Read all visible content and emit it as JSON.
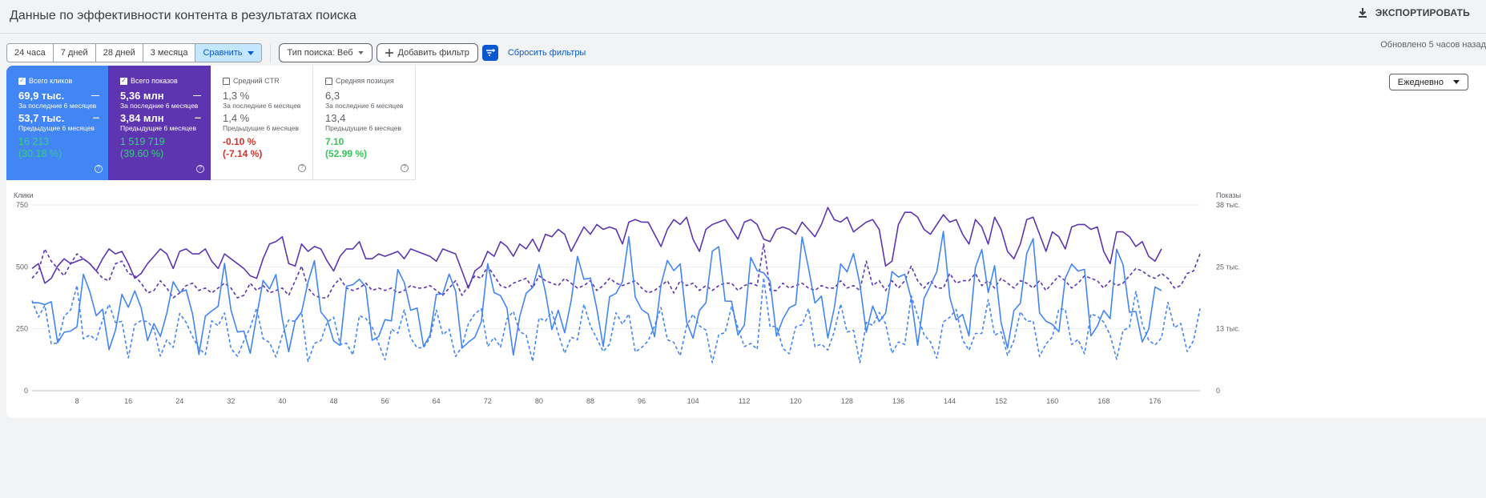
{
  "header": {
    "title": "Данные по эффективности контента в результатах поиска",
    "export_label": "ЭКСПОРТИРОВАТЬ"
  },
  "filters": {
    "ranges": [
      "24 часа",
      "7 дней",
      "28 дней",
      "3 месяца"
    ],
    "compare_label": "Сравнить",
    "search_type": "Тип поиска: Веб",
    "add_filter": "Добавить фильтр",
    "reset": "Сбросить фильтры",
    "updated": "Обновлено 5 часов назад"
  },
  "metrics": [
    {
      "name": "Всего кликов",
      "checked": true,
      "current": "69,9 тыс.",
      "current_label": "За последние 6 месяцев",
      "previous": "53,7 тыс.",
      "previous_label": "Предыдущие 6 месяцев",
      "delta": "16 213",
      "delta_pct": "(30.18 %)"
    },
    {
      "name": "Всего показов",
      "checked": true,
      "current": "5,36 млн",
      "current_label": "За последние 6 месяцев",
      "previous": "3,84 млн",
      "previous_label": "Предыдущие 6 месяцев",
      "delta": "1 519 719",
      "delta_pct": "(39.60 %)"
    },
    {
      "name": "Средний CTR",
      "checked": false,
      "current": "1,3 %",
      "current_label": "За последние 6 месяцев",
      "previous": "1,4 %",
      "previous_label": "Предыдущие 6 месяцев",
      "delta": "-0.10 %",
      "delta_pct": "(-7.14 %)"
    },
    {
      "name": "Средняя позиция",
      "checked": false,
      "current": "6,3",
      "current_label": "За последние 6 месяцев",
      "previous": "13,4",
      "previous_label": "Предыдущие 6 месяцев",
      "delta": "7.10",
      "delta_pct": "(52.99 %)"
    }
  ],
  "granularity": "Ежедневно",
  "colors": {
    "clicks": "#4285f4",
    "impressions": "#5e35b1",
    "positive": "#34c759",
    "negative": "#d93025"
  },
  "chart_data": {
    "type": "line",
    "ylabel_left": "Клики",
    "ylabel_right": "Показы",
    "yticks_left": [
      "0",
      "250",
      "500",
      "750"
    ],
    "yticks_right": [
      "0",
      "13 тыс.",
      "25 тыс.",
      "38 тыс."
    ],
    "ylim_left": [
      0,
      750
    ],
    "ylim_right": [
      0,
      38000
    ],
    "xticks": [
      8,
      16,
      24,
      32,
      40,
      48,
      56,
      64,
      72,
      80,
      88,
      96,
      104,
      112,
      120,
      128,
      136,
      144,
      152,
      160,
      168,
      176
    ],
    "x_range": [
      1,
      183
    ],
    "series": [
      {
        "name": "Всего показов",
        "dash": false,
        "axis": "right"
      },
      {
        "name": "Всего показов",
        "dash": true,
        "axis": "right"
      },
      {
        "name": "Всего кликов",
        "dash": false,
        "axis": "left"
      },
      {
        "name": "Всего кликов",
        "dash": true,
        "axis": "left"
      }
    ],
    "impr_current": [
      25000,
      26000,
      22000,
      23000,
      25500,
      27000,
      26000,
      26500,
      27000,
      26000,
      24500,
      27000,
      29000,
      28000,
      28500,
      26000,
      23000,
      24000,
      26000,
      27500,
      29000,
      28000,
      25000,
      28500,
      29000,
      28000,
      28000,
      29000,
      26500,
      25000,
      28000,
      27000,
      26000,
      25000,
      23500,
      23000,
      27000,
      30000,
      30500,
      31500,
      26000,
      25500,
      30000,
      28500,
      29500,
      29000,
      26500,
      24500,
      27500,
      29000,
      29000,
      30500,
      27000,
      27000,
      28000,
      27500,
      28000,
      28500,
      27000,
      29000,
      28500,
      28000,
      27500,
      26500,
      29000,
      28500,
      28000,
      24500,
      21000,
      24500,
      25500,
      28500,
      27500,
      30500,
      29500,
      27500,
      30000,
      29000,
      31000,
      28500,
      32000,
      31500,
      33000,
      32000,
      28500,
      31000,
      33500,
      32000,
      34000,
      33000,
      33500,
      33000,
      30000,
      34500,
      35000,
      34500,
      34500,
      32000,
      29500,
      33000,
      35000,
      34000,
      35500,
      31000,
      28500,
      33000,
      34000,
      34500,
      35000,
      33000,
      31000,
      34500,
      35000,
      34000,
      31000,
      30500,
      33000,
      33500,
      33000,
      32000,
      34500,
      33000,
      31500,
      34000,
      37500,
      35000,
      34500,
      35500,
      32500,
      33500,
      34500,
      35000,
      33000,
      25500,
      26500,
      34000,
      36500,
      36500,
      35500,
      33000,
      32000,
      34000,
      36000,
      34500,
      35000,
      32000,
      30000,
      35000,
      33500,
      30000,
      35500,
      33000,
      28500,
      27000,
      30000,
      35000,
      35500,
      32000,
      28500,
      32500,
      31500,
      29000,
      33500,
      34000,
      34000,
      33000,
      33500,
      28500,
      26000,
      32500,
      32500,
      31500,
      29500,
      30500,
      27500,
      26500,
      29000
    ],
    "impr_previous": [
      23000,
      24500,
      29000,
      26500,
      25000,
      23500,
      26000,
      28000,
      27000,
      26000,
      24500,
      23000,
      22500,
      26000,
      26500,
      24000,
      23500,
      22000,
      20000,
      20500,
      22500,
      21000,
      19000,
      20000,
      21500,
      22000,
      20500,
      21000,
      20000,
      21000,
      22000,
      21000,
      19000,
      19500,
      22000,
      20500,
      21500,
      20000,
      20500,
      21000,
      19500,
      22500,
      25500,
      21000,
      19500,
      19000,
      19000,
      21500,
      23000,
      21000,
      20500,
      21000,
      22000,
      20500,
      21000,
      20500,
      21000,
      20000,
      20500,
      21500,
      21000,
      21000,
      21500,
      20500,
      19500,
      21000,
      22500,
      19500,
      21500,
      23500,
      23000,
      25500,
      23500,
      21500,
      21000,
      22000,
      22500,
      23000,
      21000,
      23500,
      22500,
      22000,
      21500,
      23000,
      22000,
      21000,
      21500,
      22500,
      20500,
      21500,
      23000,
      22000,
      21500,
      22000,
      22500,
      21000,
      20000,
      20500,
      21500,
      22500,
      20000,
      22500,
      21500,
      22000,
      20500,
      21500,
      20500,
      21500,
      22000,
      22000,
      20500,
      21500,
      22000,
      21500,
      30000,
      20500,
      20500,
      22000,
      21000,
      21500,
      22000,
      21000,
      20500,
      21500,
      21000,
      21000,
      22500,
      21000,
      21500,
      20500,
      26500,
      21500,
      22500,
      20500,
      22500,
      21000,
      22500,
      25500,
      22500,
      21000,
      22500,
      21000,
      21000,
      24000,
      22000,
      22500,
      22500,
      24000,
      21500,
      22500,
      21000,
      23000,
      22000,
      21000,
      22500,
      22000,
      21000,
      22500,
      20500,
      22000,
      23500,
      22500,
      21000,
      22000,
      23500,
      23000,
      22500,
      21000,
      22500,
      21500,
      22000,
      23500,
      25000,
      24500,
      23500,
      23000,
      24000,
      23000,
      21000,
      21500,
      24000,
      24500,
      28000
    ]
  }
}
